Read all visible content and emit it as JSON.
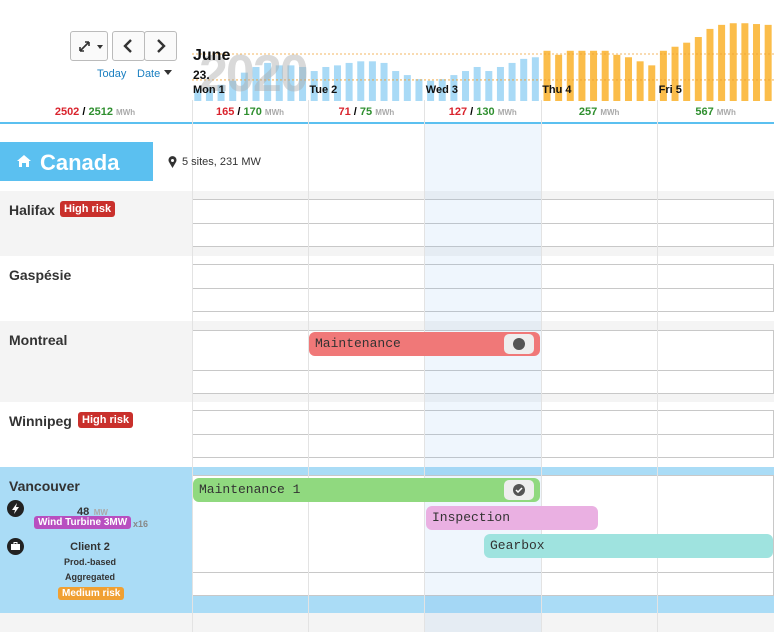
{
  "toolbar": {
    "today": "Today",
    "date": "Date"
  },
  "header": {
    "month": "June",
    "day": "23.",
    "year": "2020"
  },
  "production": {
    "actual": [
      15,
      17,
      20,
      25,
      35,
      42,
      47,
      44,
      44,
      42,
      37,
      42,
      44,
      47,
      49,
      49,
      47,
      37,
      32,
      27,
      25,
      27,
      32,
      37,
      42,
      37,
      42,
      47,
      52,
      54
    ],
    "forecast": [
      62,
      57,
      62,
      62,
      62,
      62,
      57,
      54,
      49,
      44,
      62,
      67,
      72,
      79,
      89,
      94,
      96,
      96,
      95,
      94
    ],
    "actual_color": "#a9daf6",
    "forecast_color": "#fbbd4a",
    "ylim": [
      0,
      100
    ],
    "reference_lines": [
      58,
      26
    ]
  },
  "days": [
    "Mon 1",
    "Tue 2",
    "Wed 3",
    "Thu 4",
    "Fri 5"
  ],
  "separator": "/",
  "unit": "MWh",
  "total": {
    "actual": 2502,
    "planned": 2512
  },
  "day_totals": [
    {
      "actual": 165,
      "planned": 170
    },
    {
      "actual": 71,
      "planned": 75
    },
    {
      "actual": 127,
      "planned": 130
    },
    {
      "planned": 257
    },
    {
      "planned": 567
    }
  ],
  "group": {
    "name": "Canada",
    "summary": "5 sites, 231 MW"
  },
  "sites": [
    {
      "name": "Halifax",
      "badge": "High risk"
    },
    {
      "name": "Gaspésie"
    },
    {
      "name": "Montreal",
      "events": [
        {
          "label": "Maintenance"
        }
      ]
    },
    {
      "name": "Winnipeg",
      "badge": "High risk"
    },
    {
      "name": "Vancouver",
      "power": 48,
      "power_unit": "MW",
      "turbine": "Wind Turbine 3MW",
      "turbine_count": "x16",
      "client": "Client 2",
      "contract": "Prod.-based",
      "mode": "Aggregated",
      "risk": "Medium risk",
      "events": [
        {
          "label": "Maintenance 1"
        },
        {
          "label": "Inspection"
        },
        {
          "label": "Gearbox"
        }
      ]
    }
  ]
}
